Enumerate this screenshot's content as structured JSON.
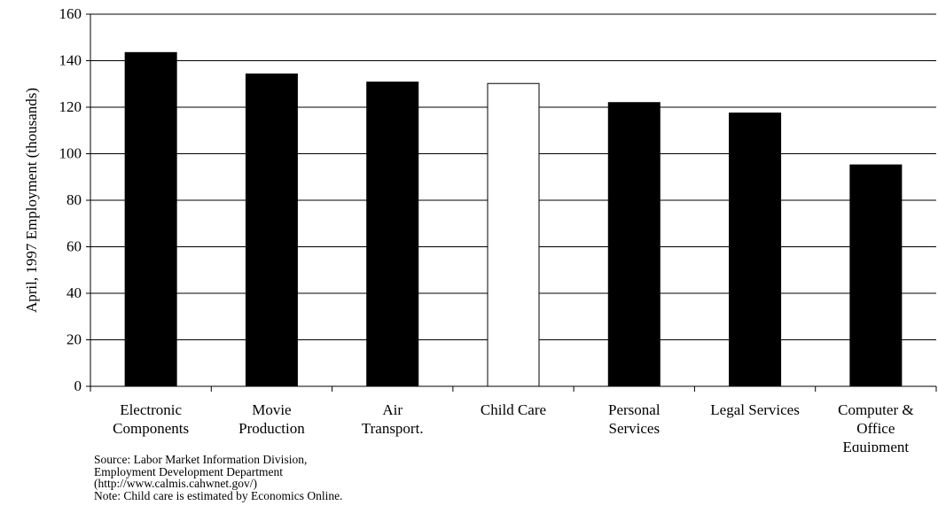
{
  "chart_data": {
    "type": "bar",
    "title": "",
    "xlabel": "",
    "ylabel": "April, 1997 Employment (thousands)",
    "ylim": [
      0,
      160
    ],
    "yticks": [
      "0",
      "20",
      "40",
      "60",
      "80",
      "100",
      "120",
      "140",
      "160"
    ],
    "grid": true,
    "categories": [
      [
        "Electronic",
        "Components"
      ],
      [
        "Movie",
        "Production"
      ],
      [
        "Air",
        "Transport."
      ],
      [
        "Child Care"
      ],
      [
        "Personal",
        "Services"
      ],
      [
        "Legal Services"
      ],
      [
        "Computer &",
        "Office",
        "Equipment"
      ]
    ],
    "values": [
      143.5,
      134.3,
      130.8,
      130.2,
      122.0,
      117.5,
      95.2
    ],
    "bar_fill": [
      "#000000",
      "#000000",
      "#000000",
      "#ffffff",
      "#000000",
      "#000000",
      "#000000"
    ]
  },
  "notes": [
    "Source: Labor Market Information Division,",
    "Employment Development Department",
    "(http://www.calmis.cahwnet.gov/)",
    "Note: Child care is estimated by Economics Online."
  ]
}
